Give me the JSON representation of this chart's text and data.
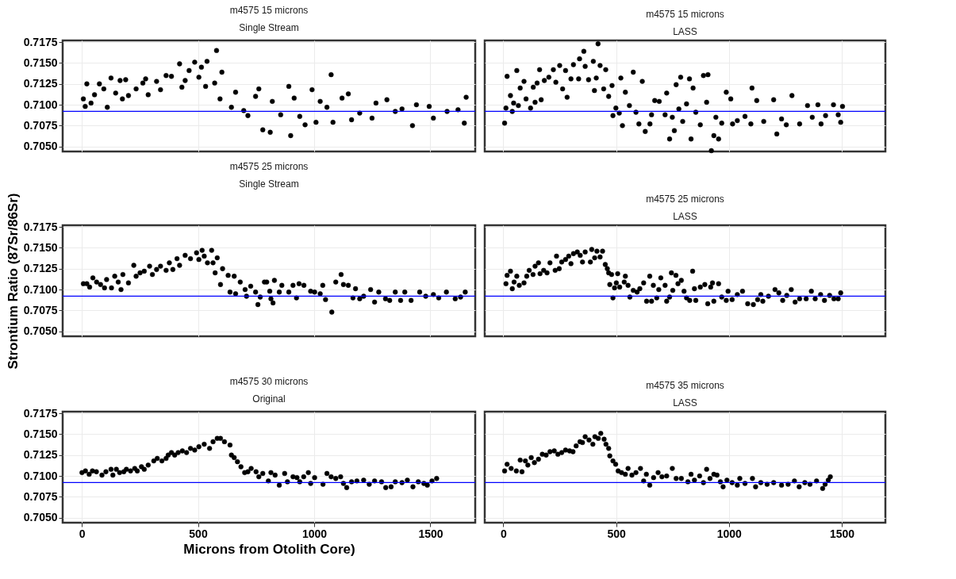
{
  "chart_data": [
    {
      "type": "scatter",
      "title": "m4575   15 microns",
      "subtitle": "Single Stream",
      "xlim": [
        -82,
        1693
      ],
      "ylim": [
        0.7044,
        0.7177
      ],
      "xticks": [
        0,
        500,
        1000,
        1500
      ],
      "yticks": [
        {
          "value": 0.705,
          "label": "0.7050"
        },
        0.7075,
        {
          "value": 0.71,
          "label": "0.7100"
        },
        0.7125,
        {
          "value": 0.715,
          "label": "0.7150"
        },
        0.7175
      ],
      "grid": true,
      "marker": "circle",
      "tick_labels": "y",
      "ref_lines": [
        {
          "axis": "y",
          "value": 0.7092,
          "color": "#0000ff"
        }
      ],
      "series": [
        {
          "color": "#000000",
          "x": [
            7,
            15,
            22,
            40,
            55,
            76,
            95,
            110,
            126,
            146,
            165,
            175,
            189,
            201,
            234,
            263,
            275,
            286,
            322,
            339,
            363,
            386,
            421,
            431,
            445,
            462,
            486,
            504,
            515,
            533,
            539,
            580,
            572,
            595,
            603,
            644,
            662,
            697,
            715,
            748,
            762,
            779,
            811,
            820,
            856,
            891,
            899,
            914,
            938,
            961,
            991,
            1008,
            1026,
            1055,
            1073,
            1081,
            1120,
            1147,
            1161,
            1196,
            1249,
            1266,
            1313,
            1349,
            1378,
            1423,
            1440,
            1495,
            1513,
            1572,
            1619,
            1646,
            1654
          ],
          "values": [
            0.7107,
            0.7098,
            0.7125,
            0.7102,
            0.7112,
            0.7125,
            0.7119,
            0.7097,
            0.7132,
            0.7114,
            0.7129,
            0.7107,
            0.713,
            0.7111,
            0.7119,
            0.7126,
            0.7131,
            0.7112,
            0.7128,
            0.7118,
            0.7135,
            0.7134,
            0.7149,
            0.7121,
            0.7129,
            0.7141,
            0.7151,
            0.7133,
            0.7145,
            0.7122,
            0.7152,
            0.7165,
            0.7126,
            0.7107,
            0.7139,
            0.7097,
            0.7115,
            0.7093,
            0.7087,
            0.711,
            0.7119,
            0.707,
            0.7067,
            0.7104,
            0.7088,
            0.7122,
            0.7063,
            0.7108,
            0.7086,
            0.7076,
            0.7118,
            0.7079,
            0.7104,
            0.7097,
            0.7136,
            0.7079,
            0.7108,
            0.7113,
            0.7082,
            0.709,
            0.7084,
            0.7102,
            0.7106,
            0.7092,
            0.7095,
            0.7075,
            0.71,
            0.7098,
            0.7084,
            0.7092,
            0.7094,
            0.7078,
            0.7109
          ]
        }
      ]
    },
    {
      "type": "scatter",
      "title": "m4575   15 microns",
      "subtitle": "LASS",
      "xlim": [
        -82,
        1693
      ],
      "ylim": [
        0.7044,
        0.7177
      ],
      "xticks": [
        0,
        500,
        1000,
        1500
      ],
      "yticks": [
        0.705,
        0.7075,
        0.71,
        0.7125,
        0.715,
        0.7175
      ],
      "grid": true,
      "marker": "circle",
      "tick_labels": false,
      "ref_lines": [
        {
          "axis": "y",
          "value": 0.7092,
          "color": "#0000ff"
        }
      ],
      "series": [
        {
          "color": "#000000",
          "x": [
            6,
            17,
            12,
            32,
            40,
            46,
            60,
            67,
            75,
            92,
            101,
            121,
            133,
            141,
            150,
            161,
            168,
            182,
            202,
            222,
            233,
            250,
            263,
            276,
            283,
            300,
            311,
            334,
            338,
            357,
            363,
            378,
            399,
            404,
            412,
            420,
            429,
            445,
            454,
            467,
            482,
            486,
            499,
            514,
            521,
            528,
            541,
            559,
            576,
            588,
            601,
            616,
            629,
            650,
            657,
            671,
            691,
            717,
            724,
            737,
            749,
            758,
            766,
            778,
            786,
            795,
            812,
            825,
            832,
            841,
            853,
            873,
            887,
            907,
            901,
            922,
            933,
            954,
            942,
            968,
            988,
            1008,
            1016,
            1037,
            1071,
            1097,
            1102,
            1123,
            1154,
            1198,
            1212,
            1233,
            1254,
            1279,
            1313,
            1348,
            1369,
            1394,
            1408,
            1428,
            1463,
            1484,
            1495,
            1503
          ],
          "values": [
            0.7078,
            0.7134,
            0.7096,
            0.7111,
            0.7092,
            0.7102,
            0.7141,
            0.7099,
            0.712,
            0.7128,
            0.7107,
            0.7096,
            0.7121,
            0.7103,
            0.7126,
            0.7142,
            0.7106,
            0.7129,
            0.7133,
            0.7142,
            0.7127,
            0.7147,
            0.7119,
            0.7141,
            0.7109,
            0.7131,
            0.7148,
            0.7131,
            0.7155,
            0.7164,
            0.7146,
            0.713,
            0.7152,
            0.7117,
            0.7132,
            0.7173,
            0.7147,
            0.7119,
            0.7142,
            0.711,
            0.7123,
            0.7087,
            0.7096,
            0.709,
            0.7132,
            0.7075,
            0.7115,
            0.7099,
            0.7139,
            0.7091,
            0.7077,
            0.7128,
            0.7068,
            0.7077,
            0.7088,
            0.7105,
            0.7104,
            0.7088,
            0.7114,
            0.7059,
            0.7085,
            0.7069,
            0.7124,
            0.7095,
            0.7133,
            0.708,
            0.7101,
            0.7131,
            0.7059,
            0.712,
            0.7091,
            0.7076,
            0.7135,
            0.7136,
            0.7103,
            0.7045,
            0.7063,
            0.7059,
            0.7085,
            0.7078,
            0.7115,
            0.7107,
            0.7077,
            0.7081,
            0.7086,
            0.7077,
            0.712,
            0.7105,
            0.708,
            0.7106,
            0.7065,
            0.7083,
            0.7076,
            0.7111,
            0.7077,
            0.7099,
            0.7085,
            0.71,
            0.7077,
            0.7087,
            0.71,
            0.7088,
            0.7079,
            0.7098
          ]
        }
      ]
    },
    {
      "type": "scatter",
      "title": "m4575   25 microns",
      "subtitle": "Single Stream",
      "ylabel": "Strontium Ratio (87Sr/86Sr)",
      "xlim": [
        -82,
        1693
      ],
      "ylim": [
        0.7044,
        0.7177
      ],
      "xticks": [
        0,
        500,
        1000,
        1500
      ],
      "yticks": [
        {
          "value": 0.705,
          "label": "0.7050"
        },
        0.7075,
        {
          "value": 0.71,
          "label": "0.7100"
        },
        0.7125,
        {
          "value": 0.715,
          "label": "0.7150"
        },
        0.7175
      ],
      "grid": true,
      "marker": "circle",
      "tick_labels": "y",
      "ref_lines": [
        {
          "axis": "y",
          "value": 0.7092,
          "color": "#0000ff"
        }
      ],
      "series": [
        {
          "color": "#000000",
          "x": [
            7,
            22,
            34,
            48,
            64,
            81,
            98,
            107,
            128,
            142,
            157,
            169,
            177,
            201,
            224,
            234,
            251,
            269,
            292,
            304,
            322,
            339,
            363,
            377,
            392,
            410,
            421,
            445,
            468,
            494,
            504,
            518,
            527,
            541,
            559,
            565,
            574,
            583,
            597,
            606,
            630,
            638,
            656,
            662,
            682,
            703,
            709,
            727,
            748,
            758,
            768,
            786,
            796,
            809,
            814,
            823,
            829,
            850,
            861,
            891,
            909,
            924,
            935,
            956,
            985,
            1002,
            1026,
            1037,
            1049,
            1076,
            1093,
            1116,
            1126,
            1147,
            1167,
            1178,
            1196,
            1213,
            1243,
            1260,
            1278,
            1307,
            1325,
            1349,
            1372,
            1390,
            1417,
            1454,
            1480,
            1513,
            1536,
            1569,
            1607,
            1630,
            1650
          ],
          "values": [
            0.7107,
            0.7107,
            0.7103,
            0.7114,
            0.7109,
            0.7106,
            0.7102,
            0.7112,
            0.7102,
            0.7116,
            0.7109,
            0.71,
            0.7118,
            0.7108,
            0.7129,
            0.7116,
            0.712,
            0.7122,
            0.7128,
            0.7118,
            0.7124,
            0.7128,
            0.7123,
            0.7132,
            0.7124,
            0.7137,
            0.7129,
            0.7141,
            0.7137,
            0.7144,
            0.7136,
            0.7147,
            0.714,
            0.7132,
            0.7147,
            0.7132,
            0.712,
            0.7138,
            0.7106,
            0.7125,
            0.7117,
            0.7097,
            0.7116,
            0.7095,
            0.7109,
            0.71,
            0.7092,
            0.7104,
            0.7097,
            0.7082,
            0.7091,
            0.7109,
            0.7109,
            0.7098,
            0.7089,
            0.7084,
            0.7111,
            0.7097,
            0.7105,
            0.7097,
            0.7105,
            0.709,
            0.7107,
            0.7105,
            0.7098,
            0.7097,
            0.7095,
            0.7105,
            0.7088,
            0.7073,
            0.7109,
            0.7118,
            0.7106,
            0.7105,
            0.709,
            0.7101,
            0.7089,
            0.7092,
            0.71,
            0.7085,
            0.7097,
            0.7089,
            0.7087,
            0.7097,
            0.7087,
            0.7097,
            0.7087,
            0.7097,
            0.7092,
            0.7094,
            0.709,
            0.7097,
            0.7089,
            0.7091,
            0.7097
          ]
        }
      ]
    },
    {
      "type": "scatter",
      "title": "m4575   25 microns",
      "subtitle": "LASS",
      "xlim": [
        -82,
        1693
      ],
      "ylim": [
        0.7044,
        0.7177
      ],
      "xticks": [
        0,
        500,
        1000,
        1500
      ],
      "yticks": [
        0.705,
        0.7075,
        0.71,
        0.7125,
        0.715,
        0.7175
      ],
      "grid": true,
      "marker": "circle",
      "tick_labels": false,
      "ref_lines": [
        {
          "axis": "y",
          "value": 0.7092,
          "color": "#0000ff"
        }
      ],
      "series": [
        {
          "color": "#000000",
          "x": [
            12,
            17,
            32,
            40,
            48,
            60,
            71,
            92,
            104,
            115,
            132,
            141,
            156,
            163,
            179,
            194,
            207,
            230,
            236,
            248,
            259,
            276,
            290,
            300,
            311,
            328,
            341,
            351,
            363,
            386,
            392,
            405,
            415,
            429,
            440,
            452,
            461,
            467,
            472,
            480,
            486,
            493,
            501,
            507,
            516,
            536,
            541,
            553,
            561,
            576,
            593,
            605,
            622,
            635,
            649,
            657,
            665,
            680,
            689,
            698,
            717,
            724,
            737,
            745,
            751,
            765,
            774,
            789,
            801,
            812,
            826,
            839,
            847,
            853,
            873,
            893,
            906,
            919,
            927,
            933,
            954,
            968,
            988,
            996,
            1014,
            1037,
            1060,
            1083,
            1108,
            1127,
            1141,
            1150,
            1175,
            1204,
            1221,
            1238,
            1256,
            1276,
            1293,
            1313,
            1342,
            1365,
            1382,
            1406,
            1423,
            1446,
            1465,
            1484,
            1495
          ],
          "values": [
            0.7107,
            0.7117,
            0.7122,
            0.7101,
            0.7109,
            0.7116,
            0.7105,
            0.7108,
            0.7116,
            0.7123,
            0.7118,
            0.7128,
            0.7132,
            0.7119,
            0.7123,
            0.712,
            0.7132,
            0.7123,
            0.714,
            0.7125,
            0.7133,
            0.7136,
            0.714,
            0.7131,
            0.7143,
            0.7145,
            0.7141,
            0.7133,
            0.7145,
            0.7133,
            0.7148,
            0.7138,
            0.7146,
            0.7139,
            0.7146,
            0.713,
            0.7125,
            0.712,
            0.7106,
            0.7118,
            0.709,
            0.7102,
            0.7108,
            0.7119,
            0.7103,
            0.7109,
            0.7116,
            0.7105,
            0.7091,
            0.7099,
            0.7097,
            0.7101,
            0.7108,
            0.7086,
            0.7116,
            0.7086,
            0.7105,
            0.709,
            0.71,
            0.7114,
            0.7105,
            0.7086,
            0.7091,
            0.712,
            0.7099,
            0.7117,
            0.7107,
            0.7111,
            0.7098,
            0.709,
            0.7087,
            0.7122,
            0.7101,
            0.7087,
            0.7103,
            0.7106,
            0.7083,
            0.7103,
            0.7108,
            0.7086,
            0.7107,
            0.7091,
            0.7087,
            0.7098,
            0.7088,
            0.7094,
            0.7098,
            0.7083,
            0.7082,
            0.7088,
            0.7094,
            0.7086,
            0.7092,
            0.71,
            0.7096,
            0.7087,
            0.7093,
            0.71,
            0.7085,
            0.7089,
            0.7089,
            0.7098,
            0.7089,
            0.7094,
            0.7087,
            0.7093,
            0.7089,
            0.7089,
            0.7096
          ]
        }
      ]
    },
    {
      "type": "scatter",
      "title": "m4575   30 microns",
      "subtitle": "Original",
      "xlabel": "Microns from Otolith Core)",
      "xlim": [
        -82,
        1693
      ],
      "ylim": [
        0.7044,
        0.7177
      ],
      "xticks": [
        0,
        500,
        1000,
        1500
      ],
      "yticks": [
        {
          "value": 0.705,
          "label": "0.7050"
        },
        0.7075,
        {
          "value": 0.71,
          "label": "0.7100"
        },
        0.7125,
        {
          "value": 0.715,
          "label": "0.7150"
        },
        0.7175
      ],
      "grid": true,
      "marker": "circle",
      "ref_lines": [
        {
          "axis": "y",
          "value": 0.7092,
          "color": "#0000ff"
        }
      ],
      "series": [
        {
          "color": "#000000",
          "x": [
            1,
            16,
            32,
            46,
            63,
            87,
            104,
            126,
            134,
            149,
            163,
            181,
            192,
            210,
            228,
            239,
            257,
            269,
            286,
            310,
            325,
            345,
            363,
            372,
            386,
            400,
            415,
            433,
            451,
            468,
            486,
            504,
            527,
            550,
            565,
            583,
            597,
            614,
            638,
            644,
            656,
            670,
            685,
            701,
            715,
            729,
            750,
            762,
            779,
            803,
            814,
            832,
            850,
            873,
            885,
            909,
            926,
            938,
            955,
            975,
            985,
            1002,
            1038,
            1055,
            1073,
            1093,
            1114,
            1126,
            1140,
            1161,
            1184,
            1213,
            1237,
            1260,
            1290,
            1308,
            1331,
            1349,
            1378,
            1401,
            1425,
            1448,
            1472,
            1487,
            1507,
            1527
          ],
          "values": [
            0.7104,
            0.7106,
            0.7102,
            0.7106,
            0.7105,
            0.7101,
            0.7105,
            0.7108,
            0.7101,
            0.7108,
            0.7104,
            0.7105,
            0.7108,
            0.7106,
            0.7109,
            0.7106,
            0.7111,
            0.7108,
            0.7113,
            0.7118,
            0.7121,
            0.7118,
            0.7121,
            0.7125,
            0.7128,
            0.7125,
            0.7128,
            0.713,
            0.7128,
            0.7133,
            0.7131,
            0.7135,
            0.7138,
            0.7133,
            0.7141,
            0.7145,
            0.7145,
            0.7141,
            0.7137,
            0.7125,
            0.7122,
            0.7117,
            0.7111,
            0.7104,
            0.7105,
            0.7109,
            0.7105,
            0.7099,
            0.7103,
            0.7094,
            0.7104,
            0.7101,
            0.7089,
            0.7103,
            0.7093,
            0.7099,
            0.7098,
            0.7093,
            0.7099,
            0.7104,
            0.7091,
            0.7098,
            0.709,
            0.7103,
            0.7099,
            0.7097,
            0.7099,
            0.7091,
            0.7086,
            0.7093,
            0.7094,
            0.7095,
            0.709,
            0.7094,
            0.7093,
            0.7086,
            0.7087,
            0.7093,
            0.7092,
            0.7095,
            0.7087,
            0.7093,
            0.7091,
            0.7089,
            0.7094,
            0.7097
          ]
        }
      ]
    },
    {
      "type": "scatter",
      "title": "m4575   35 microns",
      "subtitle": "LASS",
      "xlim": [
        -82,
        1693
      ],
      "ylim": [
        0.7044,
        0.7177
      ],
      "xticks": [
        0,
        500,
        1000,
        1500
      ],
      "yticks": [
        0.705,
        0.7075,
        0.71,
        0.7125,
        0.715,
        0.7175
      ],
      "grid": true,
      "marker": "circle",
      "tick_labels": "x",
      "ref_lines": [
        {
          "axis": "y",
          "value": 0.7092,
          "color": "#0000ff"
        }
      ],
      "series": [
        {
          "color": "#000000",
          "x": [
            6,
            17,
            35,
            58,
            75,
            83,
            98,
            109,
            124,
            138,
            156,
            173,
            190,
            207,
            226,
            242,
            259,
            276,
            294,
            309,
            323,
            340,
            351,
            363,
            380,
            397,
            406,
            421,
            432,
            447,
            455,
            467,
            472,
            486,
            498,
            509,
            524,
            541,
            553,
            570,
            588,
            608,
            622,
            634,
            649,
            666,
            686,
            703,
            724,
            749,
            766,
            789,
            818,
            832,
            847,
            870,
            887,
            901,
            916,
            933,
            947,
            962,
            974,
            991,
            1014,
            1037,
            1048,
            1071,
            1104,
            1118,
            1141,
            1169,
            1198,
            1233,
            1262,
            1290,
            1311,
            1336,
            1359,
            1388,
            1415,
            1426,
            1440,
            1449
          ],
          "values": [
            0.7106,
            0.7114,
            0.7109,
            0.7106,
            0.7119,
            0.7105,
            0.7118,
            0.7113,
            0.7122,
            0.7116,
            0.712,
            0.7126,
            0.7125,
            0.7129,
            0.713,
            0.7126,
            0.7128,
            0.7131,
            0.713,
            0.7129,
            0.7136,
            0.7141,
            0.714,
            0.7147,
            0.7143,
            0.7138,
            0.7147,
            0.7145,
            0.7151,
            0.7144,
            0.7138,
            0.7133,
            0.7124,
            0.7118,
            0.7114,
            0.7106,
            0.7104,
            0.7102,
            0.7109,
            0.7101,
            0.7104,
            0.7109,
            0.7094,
            0.7102,
            0.7089,
            0.7098,
            0.7104,
            0.7099,
            0.71,
            0.7109,
            0.7097,
            0.7097,
            0.7093,
            0.7102,
            0.7095,
            0.71,
            0.7092,
            0.7108,
            0.7097,
            0.7102,
            0.7101,
            0.7093,
            0.7087,
            0.7095,
            0.7092,
            0.7089,
            0.7097,
            0.7091,
            0.7097,
            0.7087,
            0.7092,
            0.709,
            0.7092,
            0.7089,
            0.709,
            0.7094,
            0.7087,
            0.7092,
            0.709,
            0.7094,
            0.7085,
            0.709,
            0.7095,
            0.7099
          ]
        }
      ]
    }
  ]
}
